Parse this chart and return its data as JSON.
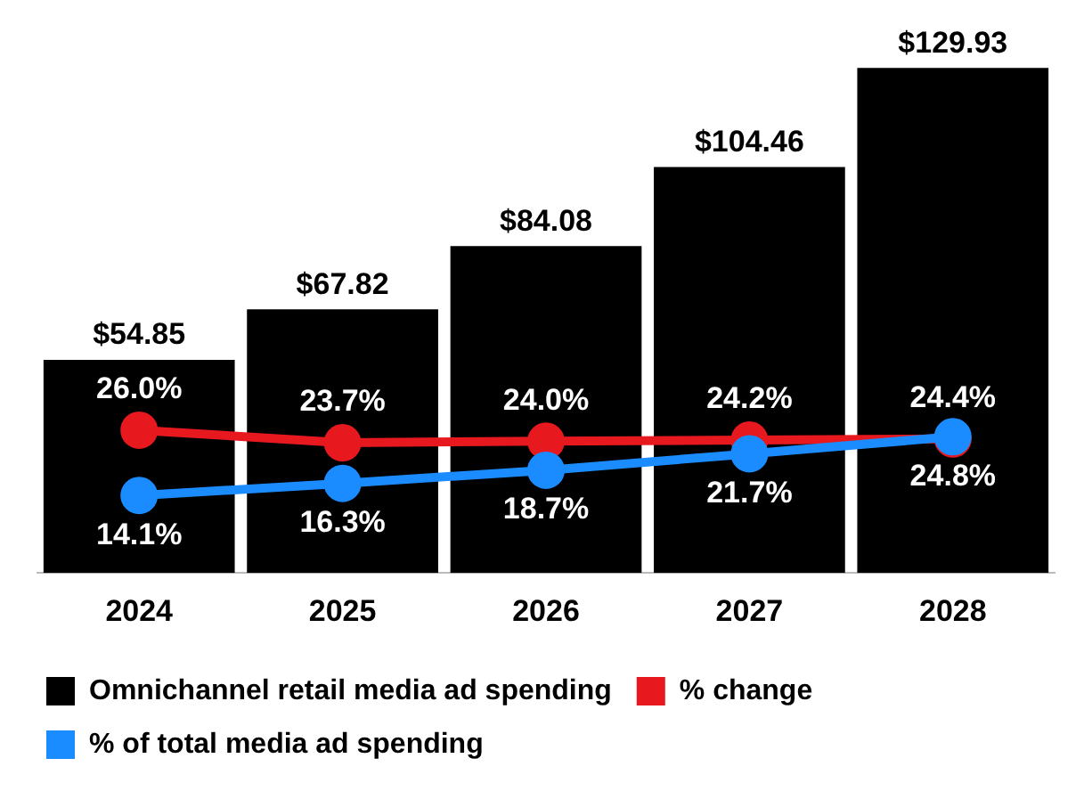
{
  "chart_data": {
    "type": "bar",
    "categories": [
      "2024",
      "2025",
      "2026",
      "2027",
      "2028"
    ],
    "series": [
      {
        "name": "Omnichannel retail media ad spending",
        "color": "#000000",
        "values": [
          54.85,
          67.82,
          84.08,
          104.46,
          129.93
        ],
        "value_labels": [
          "$54.85",
          "$67.82",
          "$84.08",
          "$104.46",
          "$129.93"
        ]
      },
      {
        "type": "line",
        "axis": "y2",
        "name": "% change",
        "color": "#e8191e",
        "values": [
          26.0,
          23.7,
          24.0,
          24.2,
          24.4
        ],
        "value_labels": [
          "26.0%",
          "23.7%",
          "24.0%",
          "24.2%",
          "24.4%"
        ]
      },
      {
        "type": "line",
        "axis": "y2",
        "name": "% of total media ad spending",
        "color": "#1a8cff",
        "values": [
          14.1,
          16.3,
          18.7,
          21.7,
          24.8
        ],
        "value_labels": [
          "14.1%",
          "16.3%",
          "18.7%",
          "21.7%",
          "24.8%"
        ]
      }
    ],
    "ylim": [
      0,
      130
    ],
    "y2lim": [
      0,
      92
    ],
    "tick_labels": "x",
    "grid": false,
    "legend": "bottom",
    "marker": "circle",
    "line_style": "solid"
  }
}
